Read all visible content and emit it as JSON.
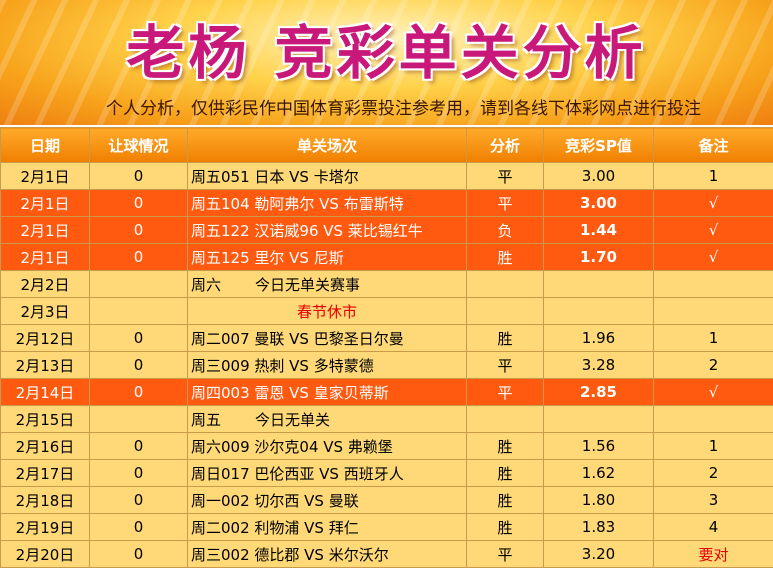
{
  "banner": {
    "title": "老杨  竞彩单关分析",
    "subtitle": "个人分析，仅供彩民作中国体育彩票投注参考用，请到各线下体彩网点进行投注"
  },
  "table": {
    "headers": [
      "日期",
      "让球情况",
      "单关场次",
      "分析",
      "竞彩SP值",
      "备注"
    ],
    "rows": [
      {
        "date": "2月1日",
        "handicap": "0",
        "match": "周五051 日本 VS 卡塔尔",
        "pick": "平",
        "sp": "3.00",
        "note": "1",
        "highlight": false
      },
      {
        "date": "2月1日",
        "handicap": "0",
        "match": "周五104 勒阿弗尔 VS 布雷斯特",
        "pick": "平",
        "sp": "3.00",
        "note": "√",
        "highlight": true
      },
      {
        "date": "2月1日",
        "handicap": "0",
        "match": "周五122 汉诺威96 VS 莱比锡红牛",
        "pick": "负",
        "sp": "1.44",
        "note": "√",
        "highlight": true
      },
      {
        "date": "2月1日",
        "handicap": "0",
        "match": "周五125 里尔 VS 尼斯",
        "pick": "胜",
        "sp": "1.70",
        "note": "√",
        "highlight": true
      },
      {
        "date": "2月2日",
        "handicap": "",
        "match_day": "周六",
        "match_text": "今日无单关赛事",
        "pick": "",
        "sp": "",
        "note": "",
        "highlight": false,
        "type": "nomatch"
      },
      {
        "date": "2月3日",
        "handicap": "",
        "match": "春节休市",
        "pick": "",
        "sp": "",
        "note": "",
        "highlight": false,
        "type": "holiday"
      },
      {
        "date": "2月12日",
        "handicap": "0",
        "match": "周二007 曼联 VS 巴黎圣日尔曼",
        "pick": "胜",
        "sp": "1.96",
        "note": "1",
        "highlight": false
      },
      {
        "date": "2月13日",
        "handicap": "0",
        "match": "周三009 热刺 VS 多特蒙德",
        "pick": "平",
        "sp": "3.28",
        "note": "2",
        "highlight": false
      },
      {
        "date": "2月14日",
        "handicap": "0",
        "match": "周四003 雷恩 VS 皇家贝蒂斯",
        "pick": "平",
        "sp": "2.85",
        "note": "√",
        "highlight": true
      },
      {
        "date": "2月15日",
        "handicap": "",
        "match_day": "周五",
        "match_text": "今日无单关",
        "pick": "",
        "sp": "",
        "note": "",
        "highlight": false,
        "type": "nomatch"
      },
      {
        "date": "2月16日",
        "handicap": "0",
        "match": "周六009 沙尔克04 VS 弗赖堡",
        "pick": "胜",
        "sp": "1.56",
        "note": "1",
        "highlight": false
      },
      {
        "date": "2月17日",
        "handicap": "0",
        "match": "周日017 巴伦西亚 VS 西班牙人",
        "pick": "胜",
        "sp": "1.62",
        "note": "2",
        "highlight": false
      },
      {
        "date": "2月18日",
        "handicap": "0",
        "match": "周一002 切尔西 VS 曼联",
        "pick": "胜",
        "sp": "1.80",
        "note": "3",
        "highlight": false
      },
      {
        "date": "2月19日",
        "handicap": "0",
        "match": "周二002 利物浦 VS 拜仁",
        "pick": "胜",
        "sp": "1.83",
        "note": "4",
        "highlight": false
      },
      {
        "date": "2月20日",
        "handicap": "0",
        "match": "周三002 德比郡 VS 米尔沃尔",
        "pick": "平",
        "sp": "3.20",
        "note": "要对",
        "highlight": false,
        "note_color": "#e60000"
      }
    ]
  }
}
